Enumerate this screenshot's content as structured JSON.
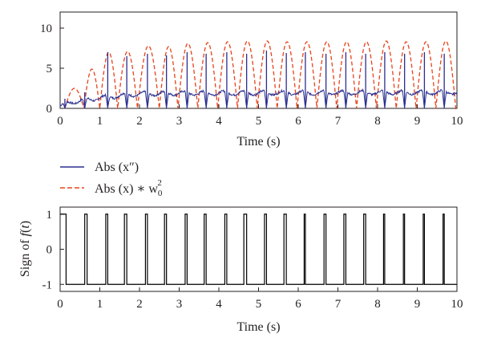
{
  "chart_data": [
    {
      "type": "line",
      "xlabel": "Time (s)",
      "ylabel": "",
      "xlim": [
        0,
        10
      ],
      "ylim": [
        0,
        12
      ],
      "xticks": [
        "0",
        "1",
        "2",
        "3",
        "4",
        "5",
        "6",
        "7",
        "8",
        "9",
        "10"
      ],
      "yticks": [
        "0",
        "5",
        "10"
      ],
      "grid": false,
      "legend": {
        "placement": "below",
        "entries": [
          {
            "text_main": "Abs (x″)",
            "color": "#2b2f8f",
            "style": "solid"
          },
          {
            "text_main": "Abs (x) ∗ w",
            "sub": "0",
            "sup": "2",
            "color": "#e8431c",
            "style": "dashed"
          }
        ]
      },
      "series": [
        {
          "name": "Abs (x″)",
          "color": "#2b2f8f",
          "baseline_profile": {
            "x": [
              0,
              0.1,
              0.3,
              0.6,
              1.0,
              1.5,
              2.0,
              3.0,
              10
            ],
            "y": [
              0.3,
              0.5,
              0.8,
              1.0,
              1.3,
              1.6,
              1.8,
              1.9,
              2.0
            ]
          },
          "spikes": {
            "x": [
              0.12,
              0.62,
              1.2,
              1.68,
              2.2,
              2.68,
              3.2,
              3.68,
              4.2,
              4.7,
              5.2,
              5.7,
              6.18,
              6.7,
              7.2,
              7.7,
              8.18,
              8.68,
              9.18,
              9.68
            ],
            "y": [
              1.2,
              2.0,
              7.0,
              6.5,
              6.8,
              6.6,
              7.0,
              6.8,
              7.0,
              6.8,
              7.2,
              6.9,
              7.0,
              6.8,
              7.0,
              6.8,
              7.0,
              6.8,
              7.0,
              6.8
            ]
          }
        },
        {
          "name": "Abs (x) ∗ w0^2",
          "color": "#e8431c",
          "zeros": [
            0.12,
            0.6,
            1.0,
            1.45,
            1.95,
            2.5,
            2.97,
            3.47,
            3.97,
            4.47,
            4.97,
            5.47,
            5.97,
            6.47,
            6.97,
            7.47,
            7.97,
            8.47,
            8.97,
            9.47,
            9.97
          ],
          "peaks": [
            2.5,
            4.9,
            7.0,
            7.1,
            7.8,
            7.7,
            8.1,
            8.2,
            8.3,
            8.4,
            8.4,
            8.3,
            8.3,
            8.3,
            8.3,
            8.3,
            8.4,
            8.3,
            8.3,
            8.4,
            8.5
          ]
        }
      ]
    },
    {
      "type": "line",
      "xlabel": "Time (s)",
      "ylabel_parts": {
        "pre": "Sign of ",
        "func": "f",
        "arg": "t"
      },
      "xlim": [
        0,
        10
      ],
      "ylim": [
        -1.2,
        1.2
      ],
      "xticks": [
        "0",
        "1",
        "2",
        "3",
        "4",
        "5",
        "6",
        "7",
        "8",
        "9",
        "10"
      ],
      "yticks": [
        "-1",
        "0",
        "1"
      ],
      "ytick_values": [
        -1,
        0,
        1
      ],
      "grid": false,
      "series": [
        {
          "name": "",
          "color": "#000000",
          "initial_value": 1,
          "pulses": [
            [
              0.15,
              0.62
            ],
            [
              0.68,
              1.15
            ],
            [
              1.2,
              1.62
            ],
            [
              1.68,
              2.15
            ],
            [
              2.2,
              2.63
            ],
            [
              2.68,
              3.15
            ],
            [
              3.2,
              3.63
            ],
            [
              3.68,
              4.15
            ],
            [
              4.2,
              4.63
            ],
            [
              4.7,
              5.15
            ],
            [
              5.2,
              5.64
            ],
            [
              5.7,
              6.15
            ],
            [
              6.18,
              6.65
            ],
            [
              6.7,
              7.15
            ],
            [
              7.2,
              7.65
            ],
            [
              7.7,
              8.15
            ],
            [
              8.18,
              8.65
            ],
            [
              8.68,
              9.15
            ],
            [
              9.18,
              9.65
            ],
            [
              9.68,
              10.0
            ]
          ],
          "pulse_value": -1,
          "between_value": 1
        }
      ]
    }
  ]
}
